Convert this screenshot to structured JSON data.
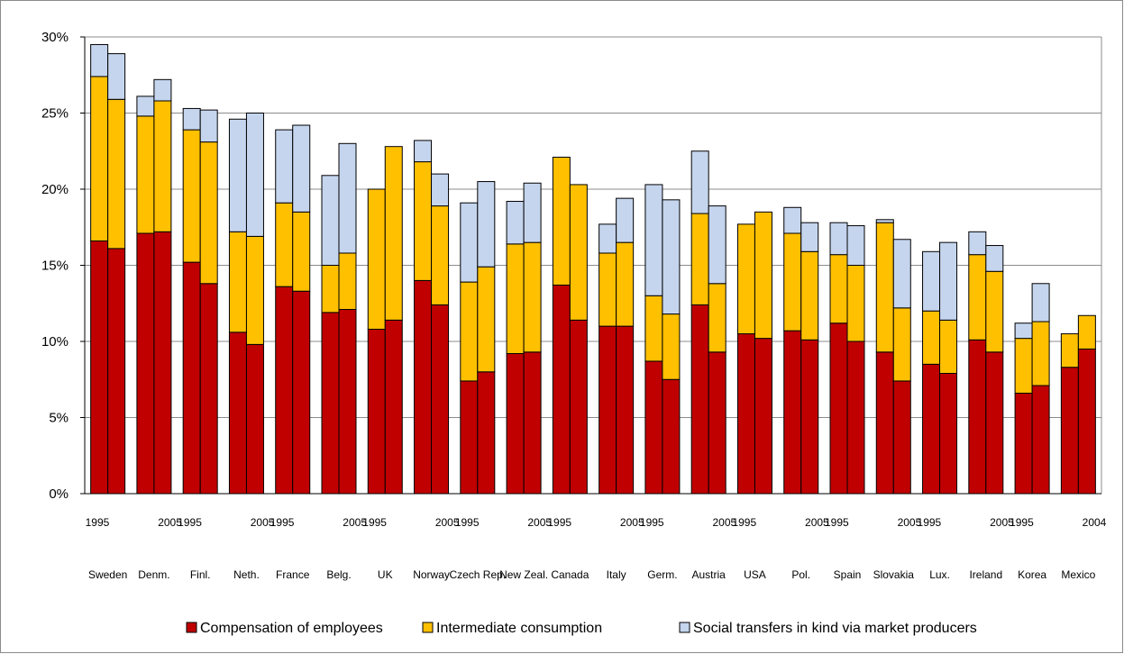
{
  "chart_data": {
    "type": "bar",
    "stacked": true,
    "title": "",
    "xlabel": "",
    "ylabel": "",
    "ylim": [
      0,
      30
    ],
    "y_ticks": [
      "0%",
      "5%",
      "10%",
      "15%",
      "20%",
      "25%",
      "30%"
    ],
    "grid": true,
    "legend_position": "bottom",
    "colors": {
      "Compensation of employees": "#c00000",
      "Intermediate consumption": "#ffc000",
      "Social transfers in kind via market producers": "#c5d5ee"
    },
    "year_labels": [
      {
        "group": 0,
        "text": "1995"
      },
      {
        "group": 1,
        "text": "2005"
      },
      {
        "group": 2,
        "text": "1995"
      },
      {
        "group": 3,
        "text": "2005"
      },
      {
        "group": 4,
        "text": "1995"
      },
      {
        "group": 5,
        "text": "2005"
      },
      {
        "group": 6,
        "text": "1995"
      },
      {
        "group": 7,
        "text": "2005"
      },
      {
        "group": 8,
        "text": "1995"
      },
      {
        "group": 9,
        "text": "2005"
      },
      {
        "group": 10,
        "text": "1995"
      },
      {
        "group": 11,
        "text": "2005"
      },
      {
        "group": 12,
        "text": "1995"
      },
      {
        "group": 13,
        "text": "2005"
      },
      {
        "group": 14,
        "text": "1995"
      },
      {
        "group": 15,
        "text": "2005"
      },
      {
        "group": 16,
        "text": "1995"
      },
      {
        "group": 17,
        "text": "2005"
      },
      {
        "group": 18,
        "text": "1995"
      },
      {
        "group": 19,
        "text": "2005"
      },
      {
        "group": 20,
        "text": "1995"
      },
      {
        "group": 21,
        "text": "2004"
      }
    ],
    "categories": [
      "Sweden",
      "Denm.",
      "Finl.",
      "Neth.",
      "France",
      "Belg.",
      "UK",
      "Norway",
      "Czech Rep.",
      "New Zeal.",
      "Canada",
      "Italy",
      "Germ.",
      "Austria",
      "USA",
      "Pol.",
      "Spain",
      "Slovakia",
      "Lux.",
      "Ireland",
      "Korea",
      "Mexico"
    ],
    "series": [
      {
        "name": "Compensation of employees",
        "values": [
          [
            16.6,
            16.1
          ],
          [
            17.1,
            17.2
          ],
          [
            15.2,
            13.8
          ],
          [
            10.6,
            9.8
          ],
          [
            13.6,
            13.3
          ],
          [
            11.9,
            12.1
          ],
          [
            10.8,
            11.4
          ],
          [
            14.0,
            12.4
          ],
          [
            7.4,
            8.0
          ],
          [
            9.2,
            9.3
          ],
          [
            13.7,
            11.4
          ],
          [
            11.0,
            11.0
          ],
          [
            8.7,
            7.5
          ],
          [
            12.4,
            9.3
          ],
          [
            10.5,
            10.2
          ],
          [
            10.7,
            10.1
          ],
          [
            11.2,
            10.0
          ],
          [
            9.3,
            7.4
          ],
          [
            8.5,
            7.9
          ],
          [
            10.1,
            9.3
          ],
          [
            6.6,
            7.1
          ],
          [
            8.3,
            9.5
          ]
        ]
      },
      {
        "name": "Intermediate consumption",
        "values": [
          [
            10.8,
            9.8
          ],
          [
            7.7,
            8.6
          ],
          [
            8.7,
            9.3
          ],
          [
            6.6,
            7.1
          ],
          [
            5.5,
            5.2
          ],
          [
            3.1,
            3.7
          ],
          [
            9.2,
            11.4
          ],
          [
            7.8,
            6.5
          ],
          [
            6.5,
            6.9
          ],
          [
            7.2,
            7.2
          ],
          [
            8.4,
            8.9
          ],
          [
            4.8,
            5.5
          ],
          [
            4.3,
            4.3
          ],
          [
            6.0,
            4.5
          ],
          [
            7.2,
            8.3
          ],
          [
            6.4,
            5.8
          ],
          [
            4.5,
            5.0
          ],
          [
            8.5,
            4.8
          ],
          [
            3.5,
            3.5
          ],
          [
            5.6,
            5.3
          ],
          [
            3.6,
            4.2
          ],
          [
            2.2,
            2.2
          ]
        ]
      },
      {
        "name": "Social transfers in kind via market producers",
        "values": [
          [
            2.1,
            3.0
          ],
          [
            1.3,
            1.4
          ],
          [
            1.4,
            2.1
          ],
          [
            7.4,
            8.1
          ],
          [
            4.8,
            5.7
          ],
          [
            5.9,
            7.2
          ],
          [
            0.0,
            0.0
          ],
          [
            1.4,
            2.1
          ],
          [
            5.2,
            5.6
          ],
          [
            2.8,
            3.9
          ],
          [
            0.0,
            0.0
          ],
          [
            1.9,
            2.9
          ],
          [
            7.3,
            7.5
          ],
          [
            4.1,
            5.1
          ],
          [
            0.0,
            0.0
          ],
          [
            1.7,
            1.9
          ],
          [
            2.1,
            2.6
          ],
          [
            0.2,
            4.5
          ],
          [
            3.9,
            5.1
          ],
          [
            1.5,
            1.7
          ],
          [
            1.0,
            2.5
          ],
          [
            0.0,
            0.0
          ]
        ]
      }
    ]
  }
}
